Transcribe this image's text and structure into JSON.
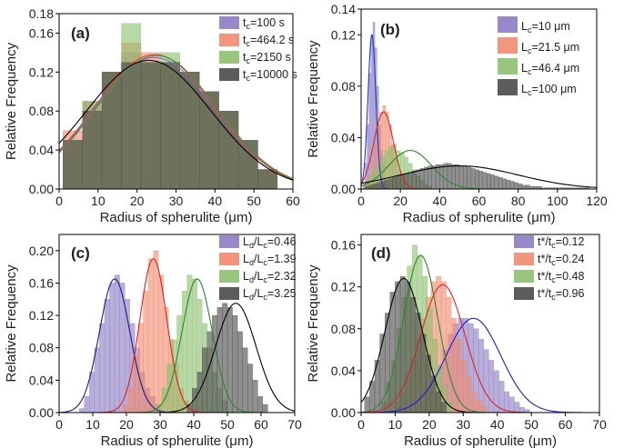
{
  "chart_data": [
    {
      "panel": "(a)",
      "type": "bar",
      "xlabel": "Radius of spherulite (μm)",
      "ylabel": "Relative Frequency",
      "xlim": [
        0,
        60
      ],
      "ylim": [
        0,
        0.18
      ],
      "xticks": [
        "0",
        "10",
        "20",
        "30",
        "40",
        "50",
        "60"
      ],
      "yticks": [
        "0.00",
        "0.04",
        "0.08",
        "0.12",
        "0.16",
        "0.18"
      ],
      "ytick_values": [
        0,
        0.04,
        0.08,
        0.12,
        0.16,
        0.18
      ],
      "legend_position": "top-right",
      "bin_edges": [
        1,
        6,
        11,
        16,
        21,
        26,
        31,
        36,
        41,
        46,
        51,
        56
      ],
      "series": [
        {
          "name": "t",
          "sub": "c",
          "suffix": "=100 s",
          "color": "#8c7cc4",
          "values": [
            0.05,
            0.09,
            0.12,
            0.14,
            0.13,
            0.13,
            0.12,
            0.1,
            0.08,
            0.05,
            0.02
          ],
          "fit": {
            "mu": 24.5,
            "sigma": 15.5,
            "amp": 0.135
          },
          "fit_color": "#7b68c8"
        },
        {
          "name": "t",
          "sub": "c",
          "suffix": "=464.2 s",
          "color": "#f08a6e",
          "values": [
            0.06,
            0.09,
            0.12,
            0.15,
            0.14,
            0.13,
            0.12,
            0.1,
            0.08,
            0.04,
            0.02
          ],
          "fit": {
            "mu": 24.5,
            "sigma": 15.5,
            "amp": 0.138
          },
          "fit_color": "#e04030"
        },
        {
          "name": "t",
          "sub": "c",
          "suffix": "=2150 s",
          "color": "#8cc06e",
          "values": [
            0.05,
            0.09,
            0.12,
            0.17,
            0.13,
            0.14,
            0.12,
            0.1,
            0.08,
            0.05,
            0.02
          ],
          "fit": {
            "mu": 25,
            "sigma": 15.5,
            "amp": 0.137
          },
          "fit_color": "#3a9a3a"
        },
        {
          "name": "t",
          "sub": "c",
          "suffix": "=10000 s",
          "color": "#4a4a4a",
          "values": [
            0.05,
            0.08,
            0.12,
            0.13,
            0.13,
            0.13,
            0.12,
            0.1,
            0.08,
            0.05,
            0.02
          ],
          "fit": {
            "mu": 23,
            "sigma": 16,
            "amp": 0.132
          },
          "fit_color": "#000000"
        }
      ]
    },
    {
      "panel": "(b)",
      "type": "bar",
      "xlabel": "Radius of spherulite (μm)",
      "ylabel": "Relative Frequency",
      "xlim": [
        0,
        120
      ],
      "ylim": [
        0,
        0.14
      ],
      "xticks": [
        "0",
        "20",
        "40",
        "60",
        "80",
        "100",
        "120"
      ],
      "yticks": [
        "0.00",
        "0.04",
        "0.08",
        "0.12",
        "0.14"
      ],
      "ytick_values": [
        0,
        0.04,
        0.08,
        0.12,
        0.14
      ],
      "legend_position": "top-right",
      "series": [
        {
          "name": "L",
          "sub": "c",
          "suffix": "=10 μm",
          "color": "#8c7cc4",
          "bin_start": 1,
          "bin_width": 1,
          "values": [
            0.005,
            0.02,
            0.05,
            0.09,
            0.12,
            0.13,
            0.11,
            0.08,
            0.05,
            0.03,
            0.02,
            0.008,
            0.004
          ],
          "fit": {
            "mu": 5.5,
            "sigma": 2.0,
            "amp": 0.12
          },
          "fit_color": "#1a3ad6"
        },
        {
          "name": "L",
          "sub": "c",
          "suffix": "=21.5 μm",
          "color": "#f08a6e",
          "bin_start": 2,
          "bin_width": 1.5,
          "values": [
            0.005,
            0.01,
            0.02,
            0.035,
            0.05,
            0.06,
            0.065,
            0.06,
            0.05,
            0.035,
            0.025,
            0.015,
            0.008,
            0.004,
            0.002
          ],
          "fit": {
            "mu": 11.5,
            "sigma": 5.0,
            "amp": 0.06
          },
          "fit_color": "#e02020"
        },
        {
          "name": "L",
          "sub": "c",
          "suffix": "=46.4 μm",
          "color": "#8cc06e",
          "bin_start": 2,
          "bin_width": 2,
          "values": [
            0.005,
            0.01,
            0.015,
            0.02,
            0.025,
            0.03,
            0.033,
            0.035,
            0.03,
            0.028,
            0.025,
            0.02,
            0.015,
            0.01,
            0.007,
            0.004,
            0.002
          ],
          "fit": {
            "mu": 25,
            "sigma": 11,
            "amp": 0.03
          },
          "fit_color": "#2a8a2a"
        },
        {
          "name": "L",
          "sub": "c",
          "suffix": "=100 μm",
          "color": "#4a4a4a",
          "bin_start": 2,
          "bin_width": 2,
          "values": [
            0.002,
            0.003,
            0.004,
            0.005,
            0.006,
            0.007,
            0.008,
            0.009,
            0.01,
            0.011,
            0.012,
            0.013,
            0.014,
            0.015,
            0.016,
            0.017,
            0.018,
            0.018,
            0.019,
            0.019,
            0.02,
            0.02,
            0.019,
            0.019,
            0.018,
            0.018,
            0.017,
            0.016,
            0.015,
            0.014,
            0.013,
            0.012,
            0.011,
            0.01,
            0.009,
            0.008,
            0.007,
            0.006,
            0.005,
            0.004,
            0.003,
            0.003,
            0.002,
            0.002,
            0.002,
            0.001,
            0.001,
            0.001,
            0.001,
            0.001,
            0.001,
            0.001,
            0.001,
            0.001,
            0.001,
            0.001,
            0.001
          ],
          "fit": {
            "mu": 50,
            "sigma": 30,
            "amp": 0.018
          },
          "fit_color": "#000000"
        }
      ]
    },
    {
      "panel": "(c)",
      "type": "bar",
      "xlabel": "Radius of spherulite (μm)",
      "ylabel": "Relative Frequency",
      "xlim": [
        0,
        70
      ],
      "ylim": [
        0,
        0.22
      ],
      "xticks": [
        "0",
        "10",
        "20",
        "30",
        "40",
        "50",
        "60",
        "70"
      ],
      "yticks": [
        "0.00",
        "0.04",
        "0.08",
        "0.12",
        "0.16",
        "0.20"
      ],
      "ytick_values": [
        0,
        0.04,
        0.08,
        0.12,
        0.16,
        0.2
      ],
      "legend_position": "top-right",
      "series": [
        {
          "name": "L",
          "sub": "d",
          "mid": "/L",
          "sub2": "c",
          "suffix": "=0.46",
          "color": "#8c7cc4",
          "bin_start": 6,
          "bin_width": 1.5,
          "values": [
            0.005,
            0.02,
            0.05,
            0.08,
            0.11,
            0.14,
            0.16,
            0.17,
            0.16,
            0.14,
            0.11,
            0.08,
            0.05,
            0.03,
            0.02,
            0.01
          ],
          "fit": {
            "mu": 16.5,
            "sigma": 4.5,
            "amp": 0.165
          },
          "fit_color": "#1a1a8a"
        },
        {
          "name": "L",
          "sub": "d",
          "mid": "/L",
          "sub2": "c",
          "suffix": "=1.39",
          "color": "#f08a6e",
          "bin_start": 19,
          "bin_width": 1.5,
          "values": [
            0.01,
            0.03,
            0.07,
            0.11,
            0.15,
            0.19,
            0.2,
            0.17,
            0.13,
            0.09,
            0.06,
            0.03,
            0.015
          ],
          "fit": {
            "mu": 28,
            "sigma": 4.0,
            "amp": 0.19
          },
          "fit_color": "#e02020"
        },
        {
          "name": "L",
          "sub": "d",
          "mid": "/L",
          "sub2": "c",
          "suffix": "=2.32",
          "color": "#8cc06e",
          "bin_start": 29,
          "bin_width": 1.5,
          "values": [
            0.01,
            0.03,
            0.06,
            0.09,
            0.12,
            0.15,
            0.17,
            0.165,
            0.14,
            0.11,
            0.08,
            0.05,
            0.03,
            0.015
          ],
          "fit": {
            "mu": 41,
            "sigma": 4.5,
            "amp": 0.165
          },
          "fit_color": "#2a8a2a"
        },
        {
          "name": "L",
          "sub": "d",
          "mid": "/L",
          "sub2": "c",
          "suffix": "=3.25",
          "color": "#4a4a4a",
          "bin_start": 38,
          "bin_width": 1.5,
          "values": [
            0.01,
            0.03,
            0.05,
            0.08,
            0.1,
            0.12,
            0.13,
            0.135,
            0.13,
            0.12,
            0.1,
            0.08,
            0.06,
            0.04,
            0.02,
            0.01
          ],
          "fit": {
            "mu": 52.5,
            "sigma": 6.0,
            "amp": 0.135
          },
          "fit_color": "#000000"
        }
      ]
    },
    {
      "panel": "(d)",
      "type": "bar",
      "xlabel": "Radius of spherulite (μm)",
      "ylabel": "Relative Frequency",
      "xlim": [
        0,
        70
      ],
      "ylim": [
        0,
        0.17
      ],
      "xticks": [
        "0",
        "10",
        "20",
        "30",
        "40",
        "50",
        "60",
        "70"
      ],
      "yticks": [
        "0.00",
        "0.04",
        "0.08",
        "0.12",
        "0.16"
      ],
      "ytick_values": [
        0,
        0.04,
        0.08,
        0.12,
        0.16
      ],
      "legend_position": "top-right",
      "series": [
        {
          "name": "t*/t",
          "sub": "c",
          "suffix": "=0.12",
          "color": "#8c7cc4",
          "bin_start": 18,
          "bin_width": 1.5,
          "values": [
            0.01,
            0.02,
            0.03,
            0.045,
            0.06,
            0.075,
            0.085,
            0.09,
            0.09,
            0.085,
            0.08,
            0.07,
            0.06,
            0.05,
            0.04,
            0.03,
            0.02,
            0.015,
            0.01,
            0.005,
            0.003
          ],
          "fit": {
            "mu": 33,
            "sigma": 8.0,
            "amp": 0.09
          },
          "fit_color": "#1a1ad6"
        },
        {
          "name": "t*/t",
          "sub": "c",
          "suffix": "=0.24",
          "color": "#f08a6e",
          "bin_start": 10,
          "bin_width": 1.5,
          "values": [
            0.01,
            0.02,
            0.035,
            0.05,
            0.07,
            0.09,
            0.11,
            0.125,
            0.13,
            0.125,
            0.11,
            0.09,
            0.07,
            0.05,
            0.035,
            0.02,
            0.012,
            0.006
          ],
          "fit": {
            "mu": 24,
            "sigma": 6.5,
            "amp": 0.122
          },
          "fit_color": "#e02020"
        },
        {
          "name": "t*/t",
          "sub": "c",
          "suffix": "=0.48",
          "color": "#8cc06e",
          "bin_start": 6,
          "bin_width": 1.5,
          "values": [
            0.01,
            0.03,
            0.05,
            0.08,
            0.11,
            0.14,
            0.16,
            0.15,
            0.13,
            0.1,
            0.07,
            0.045,
            0.025,
            0.01
          ],
          "fit": {
            "mu": 17.5,
            "sigma": 5.0,
            "amp": 0.15
          },
          "fit_color": "#2a8a2a"
        },
        {
          "name": "t*/t",
          "sub": "c",
          "suffix": "=0.96",
          "color": "#4a4a4a",
          "bin_start": 1,
          "bin_width": 1.5,
          "values": [
            0.015,
            0.03,
            0.05,
            0.075,
            0.095,
            0.115,
            0.125,
            0.13,
            0.125,
            0.11,
            0.095,
            0.075,
            0.055,
            0.035,
            0.02,
            0.01
          ],
          "fit": {
            "mu": 12.5,
            "sigma": 5.5,
            "amp": 0.128
          },
          "fit_color": "#000000"
        }
      ]
    }
  ]
}
